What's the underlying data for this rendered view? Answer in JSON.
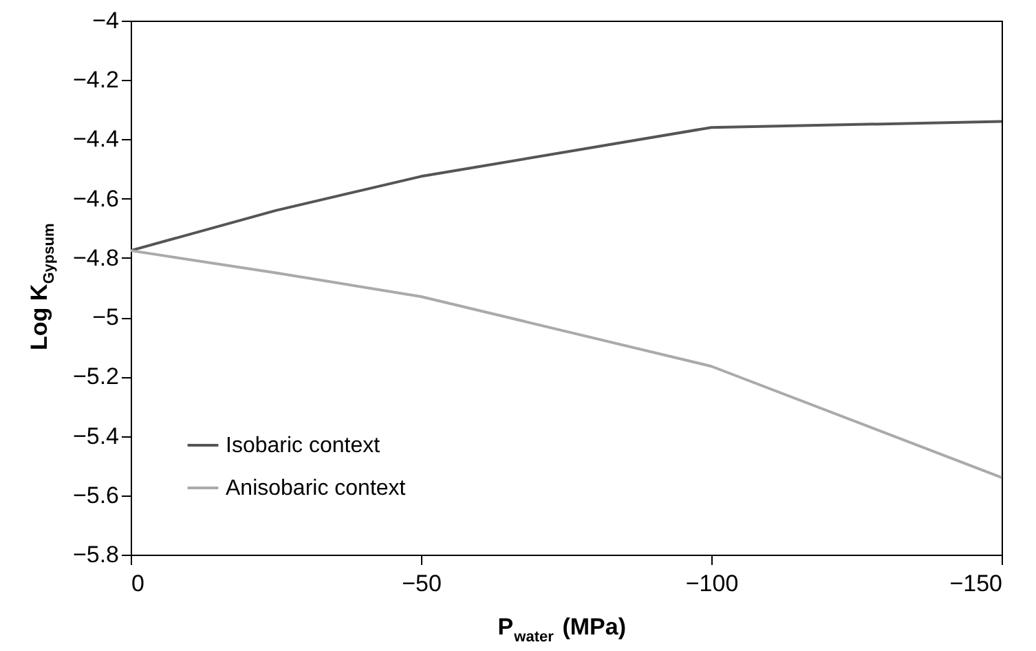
{
  "chart_data": {
    "type": "line",
    "xlabel": "P$_{water}$ (MPa)",
    "ylabel": "Log K$_{Gypsum}$",
    "x": [
      0,
      -25,
      -50,
      -100,
      -150
    ],
    "series": [
      {
        "name": "Isobaric context",
        "color": "#555555",
        "values": [
          -4.775,
          -4.64,
          -4.525,
          -4.36,
          -4.34
        ]
      },
      {
        "name": "Anisobaric context",
        "color": "#aaaaaa",
        "values": [
          -4.775,
          -4.85,
          -4.93,
          -5.165,
          -5.54
        ]
      }
    ],
    "xlim": [
      0,
      -150
    ],
    "xticks": [
      0,
      -50,
      -100,
      -150
    ],
    "ylim": [
      -5.8,
      -4
    ],
    "yticks": [
      -5.8,
      -5.6,
      -5.4,
      -5.2,
      -5,
      -4.8,
      -4.6,
      -4.4,
      -4.2,
      -4
    ],
    "grid": false,
    "legend": "bottom left",
    "marker": "none",
    "line_style": "solid"
  }
}
